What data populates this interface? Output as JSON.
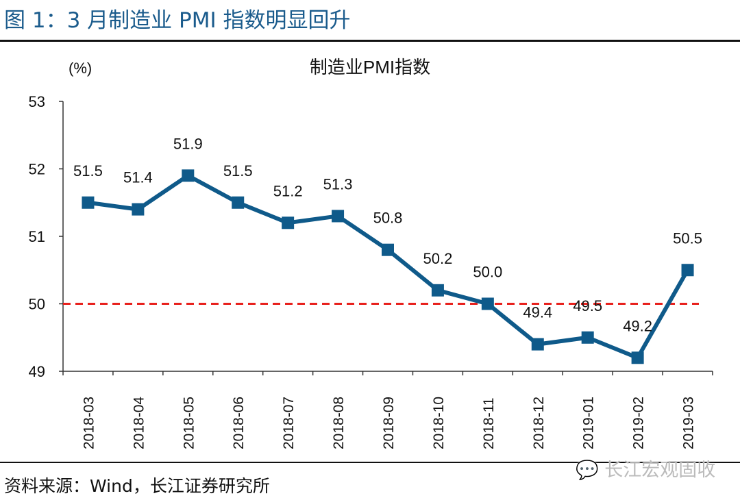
{
  "figure_title": "图 1：3 月制造业 PMI 指数明显回升",
  "source": "资料来源：Wind，长江证券研究所",
  "watermark": "长江宏观固收",
  "watermark_icon": "wechat-icon",
  "chart_data": {
    "type": "line",
    "title": "制造业PMI指数",
    "ylabel": "(%)",
    "xlabel": "",
    "categories": [
      "2018-03",
      "2018-04",
      "2018-05",
      "2018-06",
      "2018-07",
      "2018-08",
      "2018-09",
      "2018-10",
      "2018-11",
      "2018-12",
      "2019-01",
      "2019-02",
      "2019-03"
    ],
    "values": [
      51.5,
      51.4,
      51.9,
      51.5,
      51.2,
      51.3,
      50.8,
      50.2,
      50.0,
      49.4,
      49.5,
      49.2,
      50.5
    ],
    "data_labels": [
      "51.5",
      "51.4",
      "51.9",
      "51.5",
      "51.2",
      "51.3",
      "50.8",
      "50.2",
      "50.0",
      "49.4",
      "49.5",
      "49.2",
      "50.5"
    ],
    "ylim": [
      49,
      53
    ],
    "yticks": [
      "49",
      "50",
      "51",
      "52",
      "53"
    ],
    "reference_line": {
      "value": 50,
      "style": "dashed",
      "color": "#e8201c"
    },
    "line_color": "#0f5a8a",
    "marker": "square",
    "grid": false,
    "legend": "none"
  }
}
